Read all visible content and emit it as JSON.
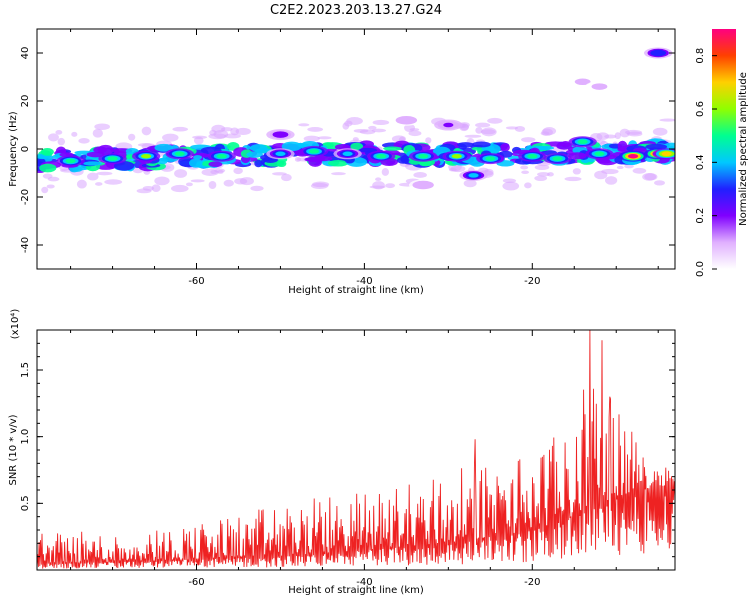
{
  "figure": {
    "title": "C2E2.2023.203.13.27.G24",
    "colors": {
      "snr_line": "#ee2222",
      "axes": "#000000",
      "background": "#ffffff"
    }
  },
  "chart_data": [
    {
      "type": "heatmap",
      "xlabel": "Height of straight line (km)",
      "ylabel": "Frequency (Hz)",
      "xlim": [
        -79,
        -3
      ],
      "ylim": [
        -50,
        50
      ],
      "xticks": [
        -60,
        -40,
        -20
      ],
      "yticks": [
        -40,
        -20,
        0,
        20,
        40
      ],
      "colorbar": {
        "label": "Normalized spectral amplitude",
        "range": [
          0.0,
          0.9
        ],
        "ticks": [
          0.0,
          0.2,
          0.4,
          0.6,
          0.8
        ],
        "colormap": [
          "#ffffff",
          "#e0b0ff",
          "#8000ff",
          "#2020ff",
          "#00c8ff",
          "#00ff90",
          "#90ff00",
          "#ffd000",
          "#ff4000",
          "#ff0080"
        ]
      },
      "band_center_hz": [
        [
          -79,
          -5
        ],
        [
          -60,
          -3
        ],
        [
          -40,
          -2
        ],
        [
          -20,
          -2
        ],
        [
          -5,
          -1
        ]
      ],
      "band_halfwidth_hz": 4,
      "blobs": [
        {
          "x": -75,
          "y": -5,
          "amp": 0.5
        },
        {
          "x": -70,
          "y": -4,
          "amp": 0.45
        },
        {
          "x": -66,
          "y": -3,
          "amp": 0.55
        },
        {
          "x": -62,
          "y": -2,
          "amp": 0.5
        },
        {
          "x": -57,
          "y": -3,
          "amp": 0.45
        },
        {
          "x": -50,
          "y": -2,
          "amp": 0.4
        },
        {
          "x": -46,
          "y": -1,
          "amp": 0.45
        },
        {
          "x": -42,
          "y": -2,
          "amp": 0.4
        },
        {
          "x": -38,
          "y": -3,
          "amp": 0.5
        },
        {
          "x": -33,
          "y": -3,
          "amp": 0.45
        },
        {
          "x": -29,
          "y": -3,
          "amp": 0.55
        },
        {
          "x": -25,
          "y": -4,
          "amp": 0.5
        },
        {
          "x": -20,
          "y": -3,
          "amp": 0.5
        },
        {
          "x": -17,
          "y": -4,
          "amp": 0.45
        },
        {
          "x": -14,
          "y": 3,
          "amp": 0.45
        },
        {
          "x": -12,
          "y": -2,
          "amp": 0.45
        },
        {
          "x": -8,
          "y": -3,
          "amp": 0.85
        },
        {
          "x": -5,
          "y": -2,
          "amp": 0.85
        },
        {
          "x": -4,
          "y": -2,
          "amp": 0.7
        },
        {
          "x": -50,
          "y": 6,
          "amp": 0.2
        },
        {
          "x": -35,
          "y": 12,
          "amp": 0.12
        },
        {
          "x": -30,
          "y": 10,
          "amp": 0.15
        },
        {
          "x": -33,
          "y": -15,
          "amp": 0.12
        },
        {
          "x": -27,
          "y": -11,
          "amp": 0.4
        },
        {
          "x": -14,
          "y": 28,
          "amp": 0.08
        },
        {
          "x": -12,
          "y": 26,
          "amp": 0.08
        },
        {
          "x": -5,
          "y": 40,
          "amp": 0.35
        }
      ]
    },
    {
      "type": "line",
      "xlabel": "Height of straight line (km)",
      "ylabel": "SNR (10 * v/v)",
      "yscale_note": "(x10⁴)",
      "xlim": [
        -79,
        -3
      ],
      "ylim": [
        0,
        18000
      ],
      "xticks": [
        -60,
        -40,
        -20
      ],
      "yticks": [
        0.5,
        1.0,
        1.5
      ],
      "ytick_labels": [
        "0.5",
        "1.0",
        "1.5"
      ],
      "series": [
        {
          "envelope": {
            "x": [
              -79,
              -70,
              -60,
              -50,
              -40,
              -30,
              -25,
              -20,
              -15,
              -12,
              -10,
              -7,
              -3
            ],
            "y_max": [
              3000,
              2800,
              3500,
              5000,
              6000,
              7500,
              8000,
              9000,
              11000,
              18000,
              13000,
              9000,
              8000
            ],
            "y_base": [
              500,
              600,
              800,
              1000,
              1500,
              2000,
              2500,
              3000,
              4000,
              5000,
              5500,
              6000,
              6500
            ]
          },
          "peaks": [
            {
              "x": -13.1,
              "y": 18000
            },
            {
              "x": -10.8,
              "y": 13000
            },
            {
              "x": -26.8,
              "y": 9800
            },
            {
              "x": -18.8,
              "y": 8500
            }
          ]
        }
      ]
    }
  ]
}
